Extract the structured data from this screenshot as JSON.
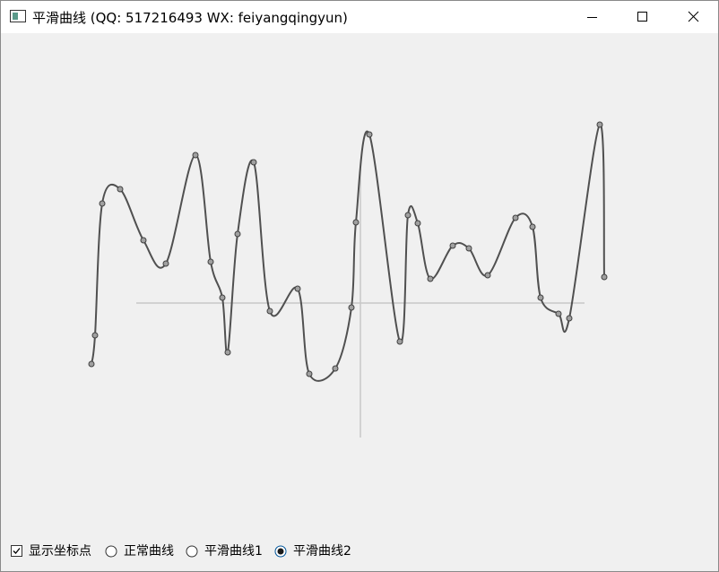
{
  "window": {
    "title": "平滑曲线 (QQ: 517216493 WX: feiyangqingyun)"
  },
  "controls": {
    "show_points": {
      "label": "显示坐标点",
      "checked": true
    },
    "modes": [
      {
        "label": "正常曲线",
        "selected": false
      },
      {
        "label": "平滑曲线1",
        "selected": false
      },
      {
        "label": "平滑曲线2",
        "selected": true
      }
    ]
  }
}
